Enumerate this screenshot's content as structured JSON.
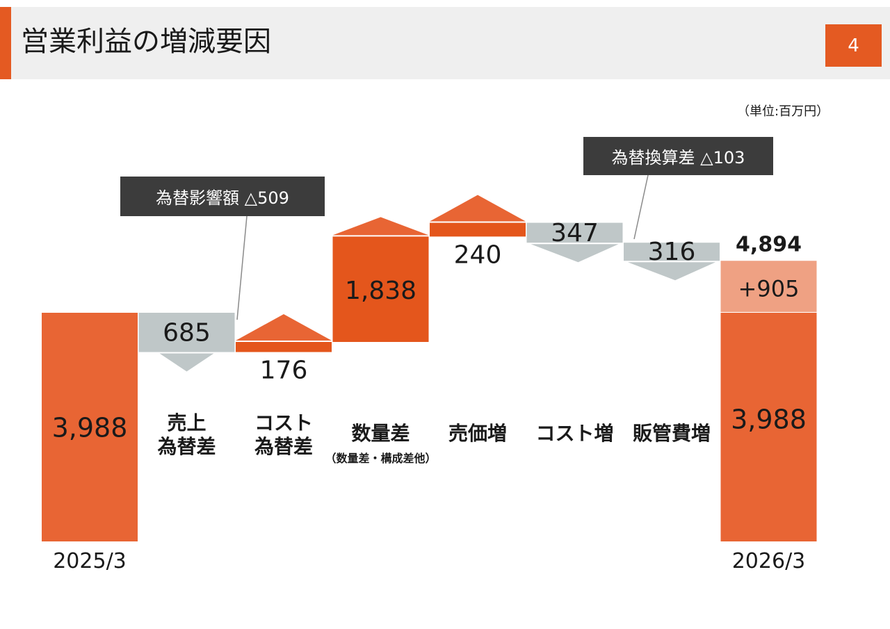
{
  "header": {
    "title": "営業利益の増減要因",
    "page_number": "4"
  },
  "unit_label": "（単位:百万円）",
  "callouts": {
    "fx_impact": "為替影響額 △509",
    "translation_diff": "為替換算差 △103"
  },
  "colors": {
    "base_bar": "#e86534",
    "increase": "#e4561c",
    "decrease": "#bfc7c8",
    "growth_segment": "#efa183",
    "header_bg": "#efefef",
    "accent": "#e45a22",
    "callout_bg": "#3c3c3c"
  },
  "chart_data": {
    "type": "waterfall",
    "title": "",
    "steps": [
      {
        "kind": "total",
        "label": "2025/3",
        "value": 3988,
        "value_label": "3,988"
      },
      {
        "kind": "decrease",
        "label": "売上\n為替差",
        "value": -685,
        "value_label": "685"
      },
      {
        "kind": "increase",
        "label": "コスト\n為替差",
        "value": 176,
        "value_label": "176"
      },
      {
        "kind": "increase",
        "label": "数量差",
        "sublabel": "（数量差・構成差他）",
        "value": 1838,
        "value_label": "1,838"
      },
      {
        "kind": "increase",
        "label": "売価増",
        "value": 240,
        "value_label": "240"
      },
      {
        "kind": "decrease",
        "label": "コスト増",
        "value": -347,
        "value_label": "347"
      },
      {
        "kind": "decrease",
        "label": "販管費増",
        "value": -316,
        "value_label": "316"
      },
      {
        "kind": "total",
        "label": "2026/3",
        "value": 4894,
        "value_label": "4,894",
        "base": 3988,
        "base_label": "3,988",
        "growth": 905,
        "growth_label": "+905"
      }
    ]
  }
}
